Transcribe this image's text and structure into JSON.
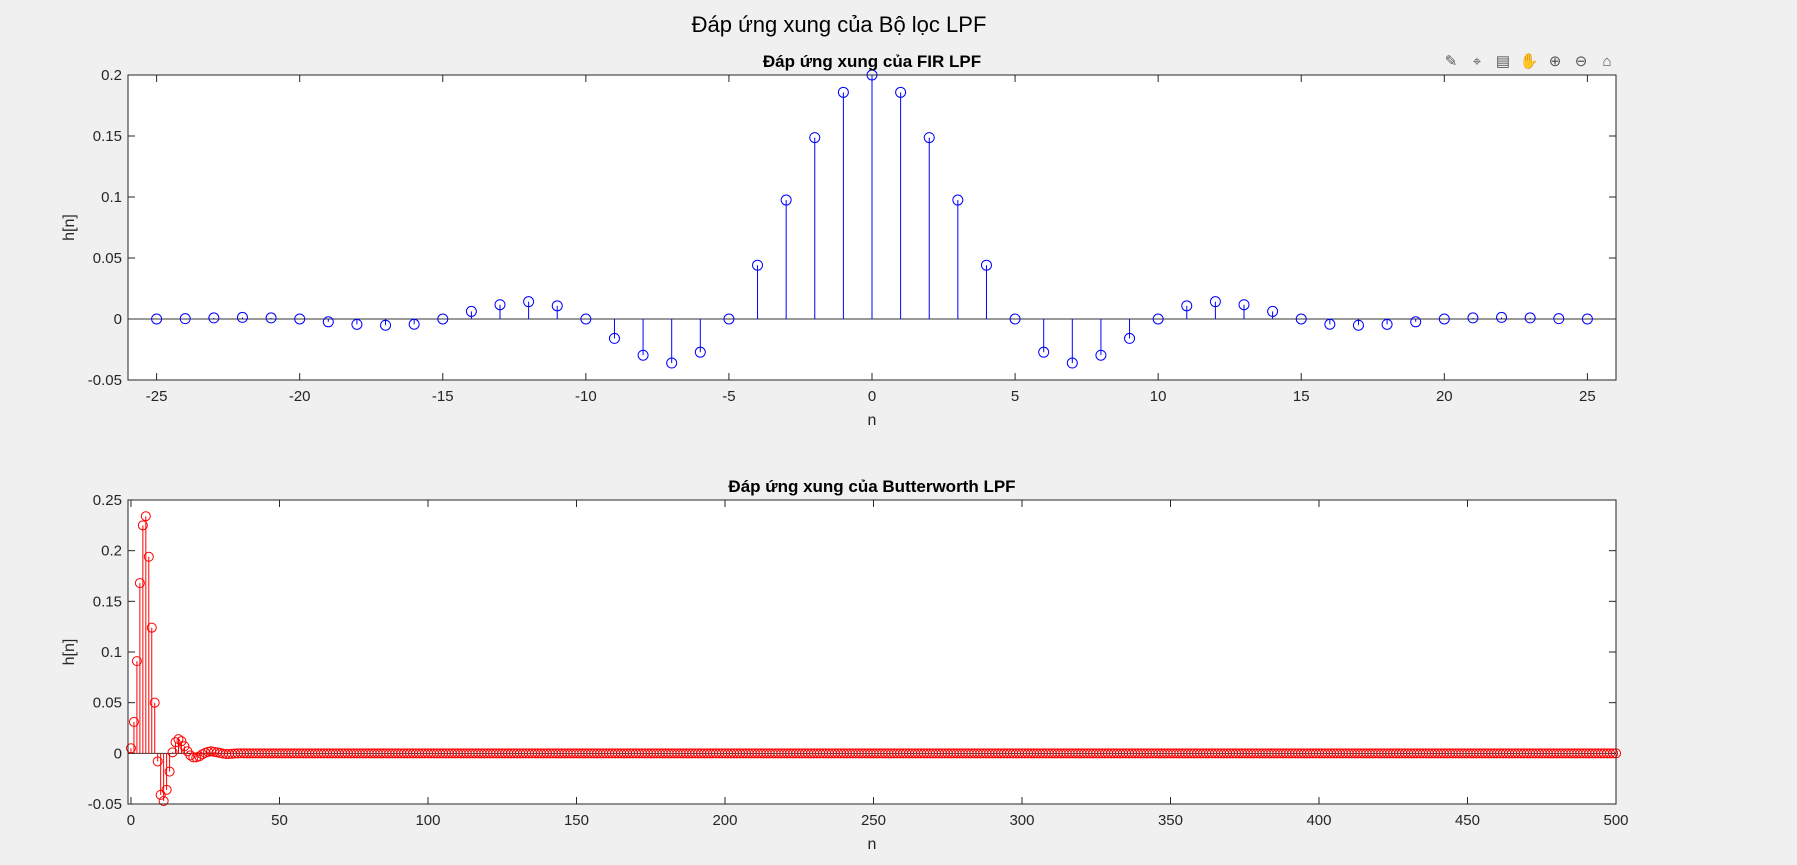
{
  "figure": {
    "suptitle": "Đáp ứng xung của Bộ lọc LPF"
  },
  "toolbar": {
    "icons": [
      "brush-icon",
      "data-tip-icon",
      "legend-icon",
      "pan-hand-icon",
      "zoom-in-icon",
      "zoom-out-icon",
      "home-icon"
    ]
  },
  "chart_data": [
    {
      "type": "stem",
      "title": "Đáp ứng xung của FIR LPF",
      "xlabel": "n",
      "ylabel": "h[n]",
      "xlim": [
        -26,
        26
      ],
      "ylim": [
        -0.05,
        0.2
      ],
      "xticks": [
        -25,
        -20,
        -15,
        -10,
        -5,
        0,
        5,
        10,
        15,
        20,
        25
      ],
      "yticks": [
        -0.05,
        0,
        0.05,
        0.1,
        0.15,
        0.2
      ],
      "color": "#0000ff",
      "x": [
        -25,
        -24,
        -23,
        -22,
        -21,
        -20,
        -19,
        -18,
        -17,
        -16,
        -15,
        -14,
        -13,
        -12,
        -11,
        -10,
        -9,
        -8,
        -7,
        -6,
        -5,
        -4,
        -3,
        -2,
        -1,
        0,
        1,
        2,
        3,
        4,
        5,
        6,
        7,
        8,
        9,
        10,
        11,
        12,
        13,
        14,
        15,
        16,
        17,
        18,
        19,
        20,
        21,
        22,
        23,
        24,
        25
      ],
      "y": [
        0,
        0.0003,
        0.0009,
        0.0013,
        0.0009,
        0,
        -0.0023,
        -0.0044,
        -0.0051,
        -0.0043,
        0,
        0.0062,
        0.0117,
        0.0142,
        0.0108,
        0,
        -0.0159,
        -0.0297,
        -0.0361,
        -0.0272,
        0,
        0.0441,
        0.0975,
        0.1487,
        0.1858,
        0.2,
        0.1858,
        0.1487,
        0.0975,
        0.0441,
        0,
        -0.0272,
        -0.0361,
        -0.0297,
        -0.0159,
        0,
        0.0108,
        0.0142,
        0.0117,
        0.0062,
        0,
        -0.0043,
        -0.0051,
        -0.0044,
        -0.0023,
        0,
        0.0009,
        0.0013,
        0.0009,
        0.0003,
        0
      ]
    },
    {
      "type": "stem",
      "title": "Đáp ứng xung của Butterworth LPF",
      "xlabel": "n",
      "ylabel": "h[n]",
      "xlim": [
        -1,
        500
      ],
      "ylim": [
        -0.05,
        0.25
      ],
      "xticks": [
        0,
        50,
        100,
        150,
        200,
        250,
        300,
        350,
        400,
        450,
        500
      ],
      "yticks": [
        -0.05,
        0,
        0.05,
        0.1,
        0.15,
        0.2,
        0.25
      ],
      "color": "#ff0000",
      "x_range": [
        0,
        500
      ],
      "y_head": [
        0.005,
        0.031,
        0.091,
        0.168,
        0.225,
        0.234,
        0.194,
        0.124,
        0.05,
        -0.008,
        -0.041,
        -0.047,
        -0.036,
        -0.018,
        0.001,
        0.011,
        0.014,
        0.012,
        0.007,
        0.002,
        -0.002,
        -0.004,
        -0.004,
        -0.003,
        -0.001,
        0.0005,
        0.0015,
        0.002,
        0.0015,
        0.001,
        0.0003,
        -0.0003,
        -0.0006,
        -0.0006,
        -0.0004,
        -0.0002,
        0,
        0.0001
      ],
      "y_tail": 0
    }
  ]
}
